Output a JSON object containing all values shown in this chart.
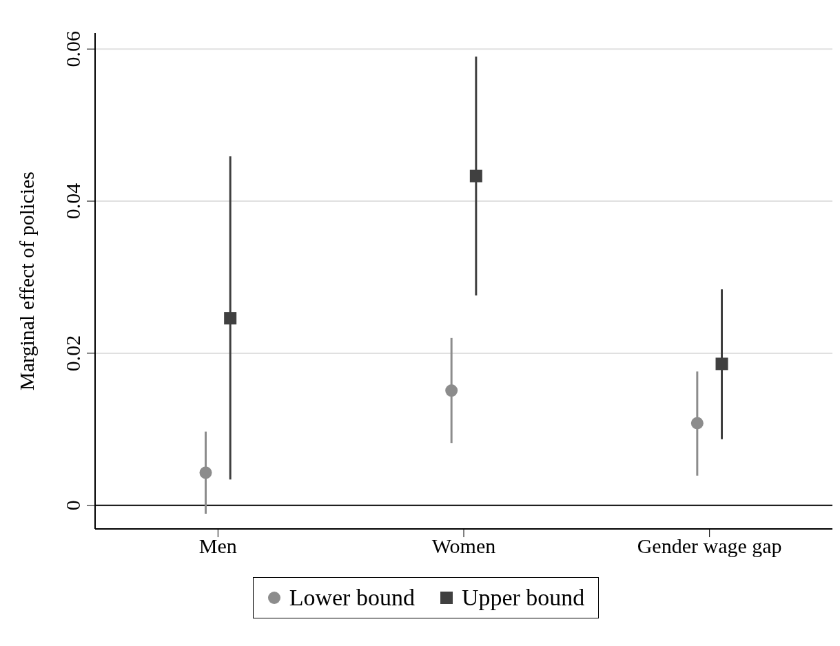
{
  "chart_data": {
    "type": "scatter",
    "ylabel": "Marginal effect of policies",
    "categories": [
      "Men",
      "Women",
      "Gender wage gap"
    ],
    "series": [
      {
        "name": "Lower bound",
        "color": "#8c8c8c",
        "marker": "circle",
        "values": [
          0.0043,
          0.0151,
          0.0108
        ],
        "errors": [
          [
            -0.0011,
            0.0097
          ],
          [
            0.0082,
            0.022
          ],
          [
            0.0039,
            0.0176
          ]
        ]
      },
      {
        "name": "Upper bound",
        "color": "#404040",
        "marker": "square",
        "values": [
          0.0246,
          0.0433,
          0.0186
        ],
        "errors": [
          [
            0.0034,
            0.0459
          ],
          [
            0.0276,
            0.059
          ],
          [
            0.0087,
            0.0284
          ]
        ]
      }
    ],
    "ylim": [
      -0.0031,
      0.0621
    ],
    "yticks": [
      0,
      0.02,
      0.04,
      0.06
    ],
    "grid": "y",
    "ref_lines": [
      {
        "axis": "y",
        "value": 0,
        "color": "#000000"
      }
    ],
    "legend": "bottom"
  }
}
